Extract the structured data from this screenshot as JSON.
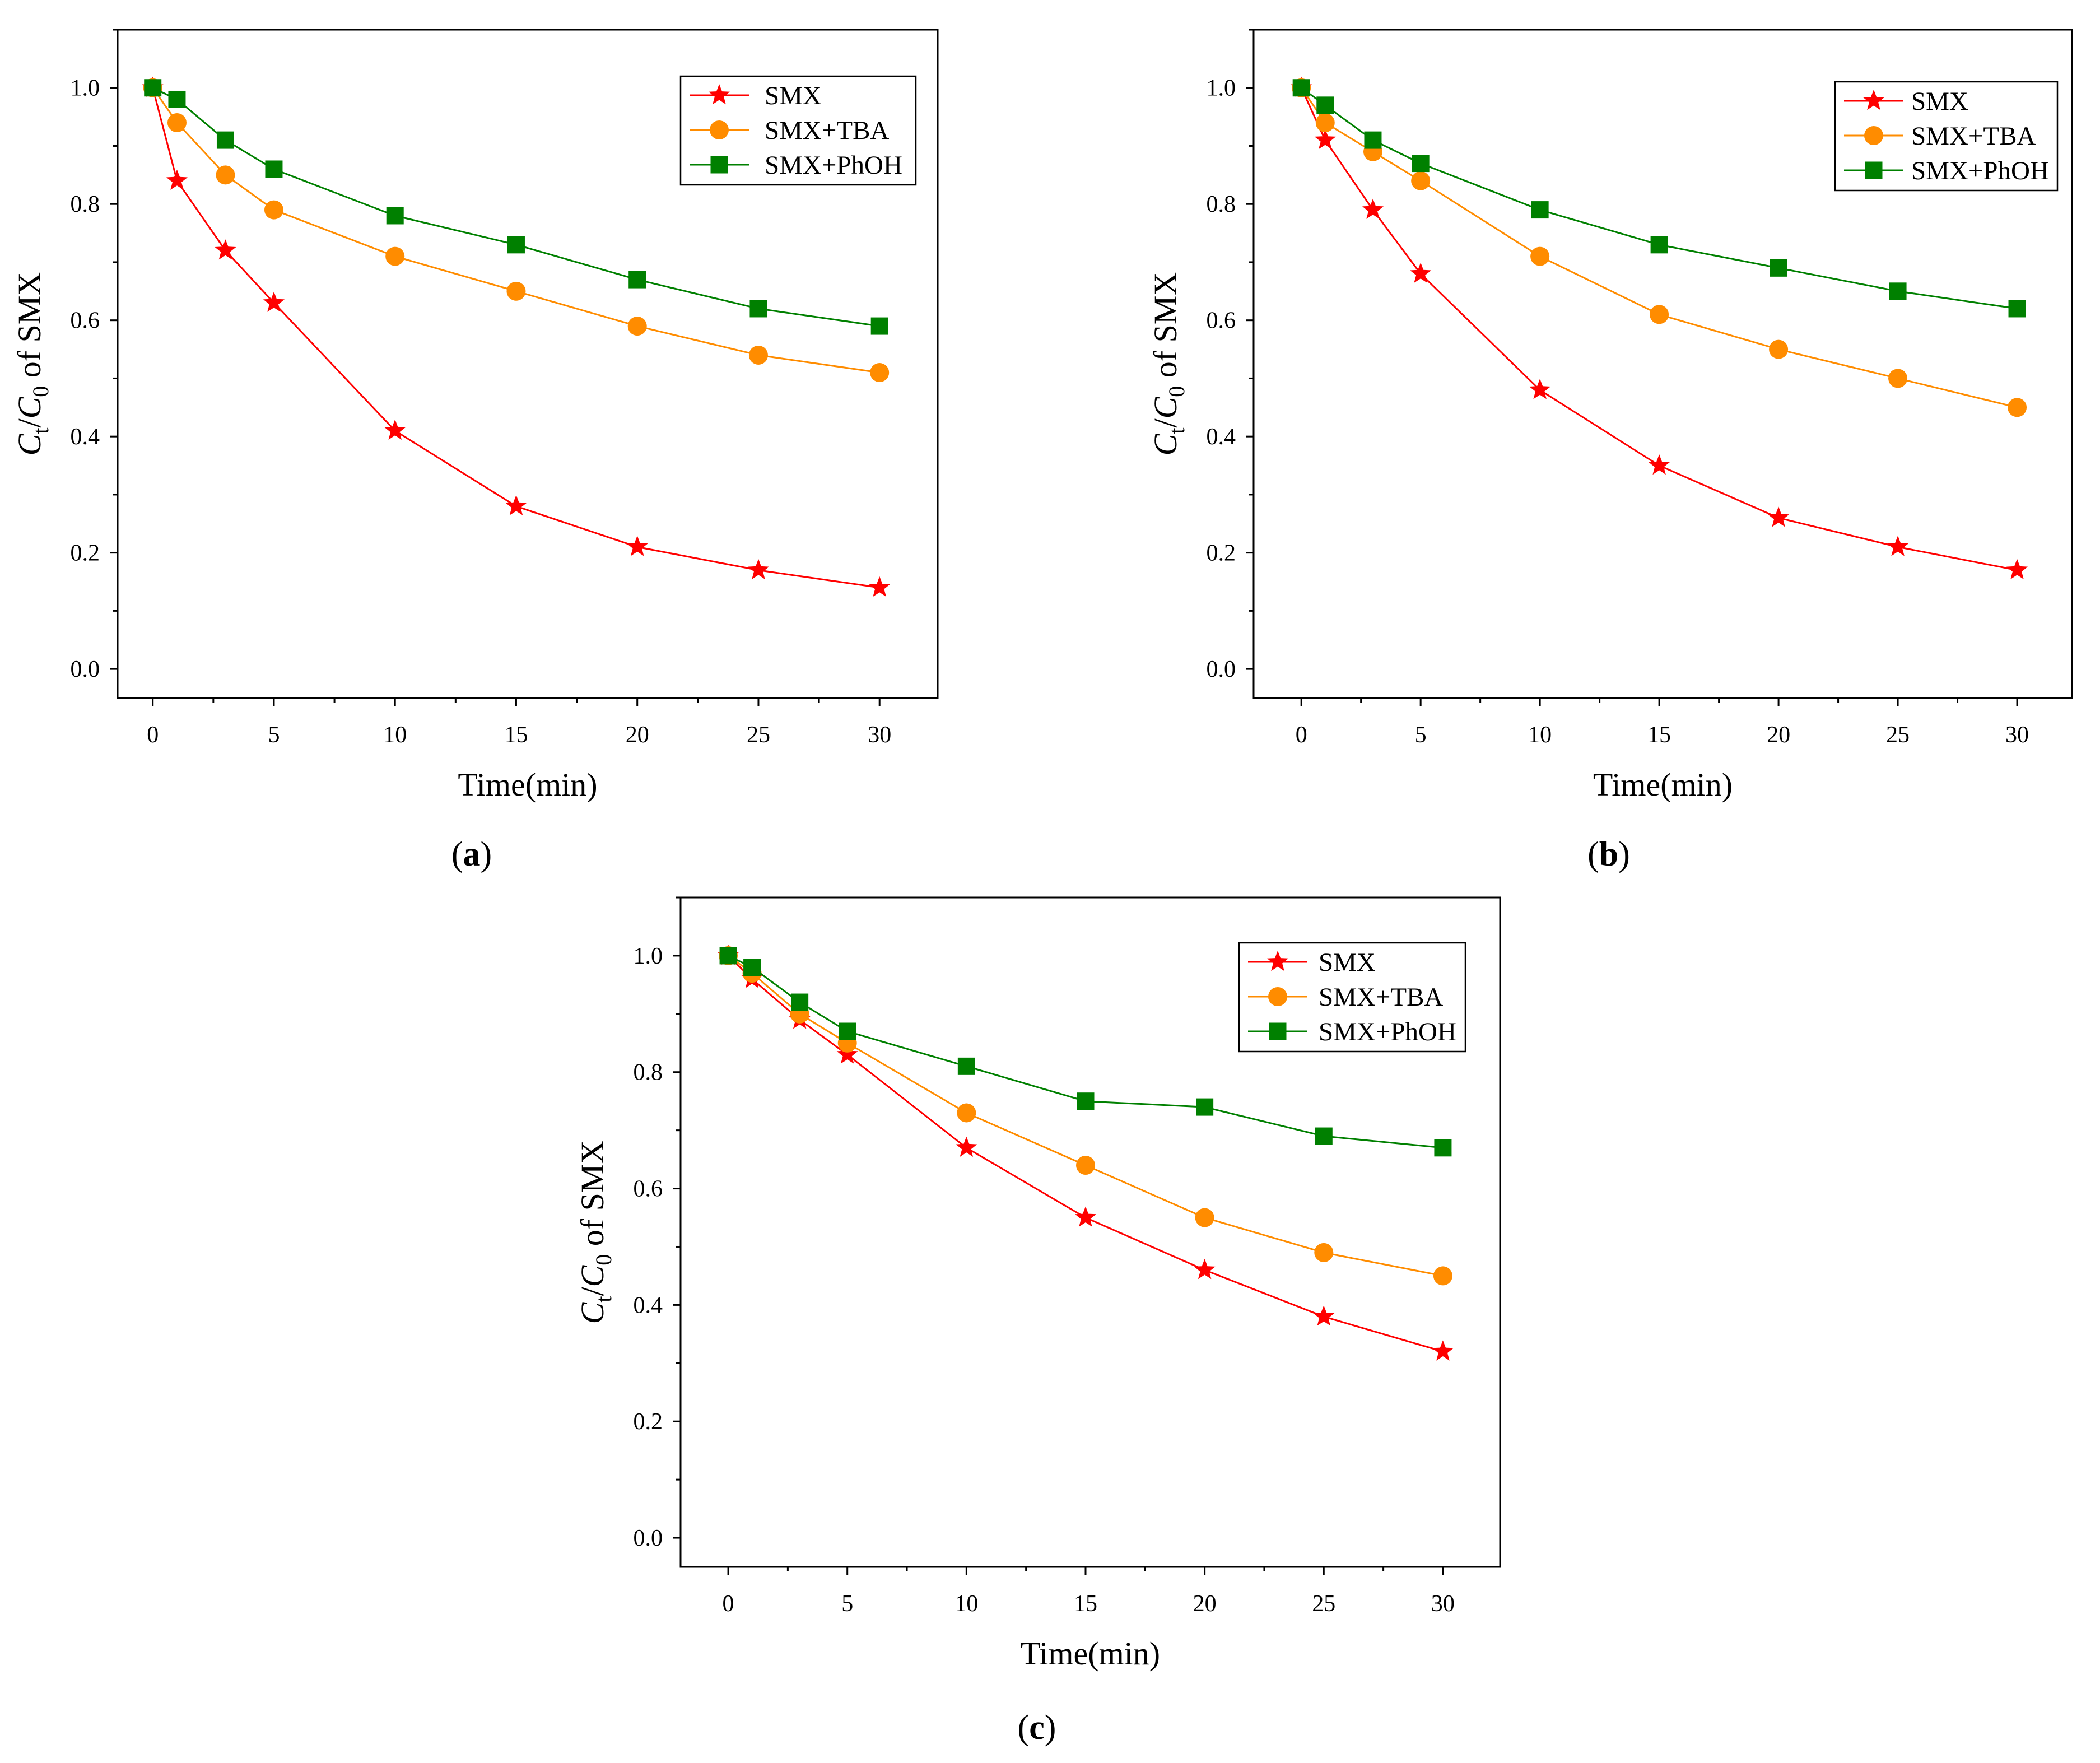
{
  "chart_data": [
    {
      "type": "line",
      "panel_label": [
        "(",
        "a",
        ")"
      ],
      "xlabel": "Time(min)",
      "ylabel": [
        "C",
        "t",
        "/",
        "C",
        "0",
        " of SMX"
      ],
      "x": [
        0,
        1,
        3,
        5,
        10,
        15,
        20,
        25,
        30
      ],
      "series": [
        {
          "name": "SMX",
          "marker": "star",
          "color": "#FF0000",
          "values": [
            1.0,
            0.84,
            0.72,
            0.63,
            0.41,
            0.28,
            0.21,
            0.17,
            0.14
          ]
        },
        {
          "name": "SMX+TBA",
          "marker": "circle",
          "color": "#FF8C00",
          "values": [
            1.0,
            0.94,
            0.85,
            0.79,
            0.71,
            0.65,
            0.59,
            0.54,
            0.51
          ]
        },
        {
          "name": "SMX+PhOH",
          "marker": "square",
          "color": "#008000",
          "values": [
            1.0,
            0.98,
            0.91,
            0.86,
            0.78,
            0.73,
            0.67,
            0.62,
            0.59
          ]
        }
      ],
      "xlim": [
        -1.45,
        32.4
      ],
      "ylim": [
        -0.05,
        1.1
      ],
      "xticks": [
        "0",
        "5",
        "10",
        "15",
        "20",
        "25",
        "30"
      ],
      "yticks": [
        "0.0",
        "0.2",
        "0.4",
        "0.6",
        "0.8",
        "1.0"
      ],
      "minor_tick_step": {
        "x": 2.5,
        "y": 0.1
      },
      "grid": false,
      "legend": "top-right"
    },
    {
      "type": "line",
      "panel_label": [
        "(",
        "b",
        ")"
      ],
      "xlabel": "Time(min)",
      "ylabel": [
        "C",
        "t",
        "/",
        "C",
        "0",
        " of SMX"
      ],
      "x": [
        0,
        1,
        3,
        5,
        10,
        15,
        20,
        25,
        30
      ],
      "series": [
        {
          "name": "SMX",
          "marker": "star",
          "color": "#FF0000",
          "values": [
            1.0,
            0.91,
            0.79,
            0.68,
            0.48,
            0.35,
            0.26,
            0.21,
            0.17
          ]
        },
        {
          "name": "SMX+TBA",
          "marker": "circle",
          "color": "#FF8C00",
          "values": [
            1.0,
            0.94,
            0.89,
            0.84,
            0.71,
            0.61,
            0.55,
            0.5,
            0.45
          ]
        },
        {
          "name": "SMX+PhOH",
          "marker": "square",
          "color": "#008000",
          "values": [
            1.0,
            0.97,
            0.91,
            0.87,
            0.79,
            0.73,
            0.69,
            0.65,
            0.62
          ]
        }
      ],
      "xlim": [
        -2,
        32.3
      ],
      "ylim": [
        -0.05,
        1.1
      ],
      "xticks": [
        "0",
        "5",
        "10",
        "15",
        "20",
        "25",
        "30"
      ],
      "yticks": [
        "0.0",
        "0.2",
        "0.4",
        "0.6",
        "0.8",
        "1.0"
      ],
      "minor_tick_step": {
        "x": 2.5,
        "y": 0.1
      },
      "grid": false,
      "legend": "top-right"
    },
    {
      "type": "line",
      "panel_label": [
        "(",
        "c",
        ")"
      ],
      "xlabel": "Time(min)",
      "ylabel": [
        "C",
        "t",
        "/",
        "C",
        "0",
        " of SMX"
      ],
      "x": [
        0,
        1,
        3,
        5,
        10,
        15,
        20,
        25,
        30
      ],
      "series": [
        {
          "name": "SMX",
          "marker": "star",
          "color": "#FF0000",
          "values": [
            1.0,
            0.96,
            0.89,
            0.83,
            0.67,
            0.55,
            0.46,
            0.38,
            0.32
          ]
        },
        {
          "name": "SMX+TBA",
          "marker": "circle",
          "color": "#FF8C00",
          "values": [
            1.0,
            0.97,
            0.9,
            0.85,
            0.73,
            0.64,
            0.55,
            0.49,
            0.45
          ]
        },
        {
          "name": "SMX+PhOH",
          "marker": "square",
          "color": "#008000",
          "values": [
            1.0,
            0.98,
            0.92,
            0.87,
            0.81,
            0.75,
            0.74,
            0.69,
            0.67
          ]
        }
      ],
      "xlim": [
        -2,
        32.4
      ],
      "ylim": [
        -0.05,
        1.1
      ],
      "xticks": [
        "0",
        "5",
        "10",
        "15",
        "20",
        "25",
        "30"
      ],
      "yticks": [
        "0.0",
        "0.2",
        "0.4",
        "0.6",
        "0.8",
        "1.0"
      ],
      "minor_tick_step": {
        "x": 2.5,
        "y": 0.1
      },
      "grid": false,
      "legend": "top-right"
    }
  ]
}
